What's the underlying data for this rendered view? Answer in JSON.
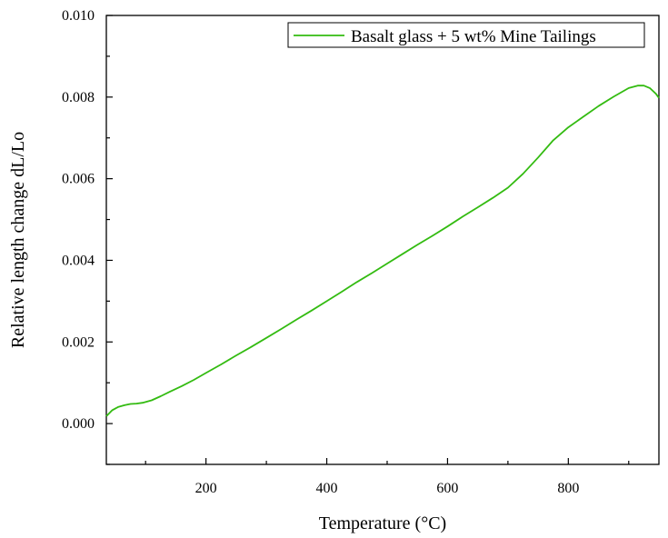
{
  "chart_data": {
    "type": "line",
    "title": "",
    "xlabel": "Temperature (°C)",
    "ylabel": "Relative length change dL/Lo",
    "xlim": [
      35,
      950
    ],
    "ylim": [
      -0.001,
      0.01
    ],
    "x_ticks": [
      200,
      400,
      600,
      800
    ],
    "x_tick_labels": [
      "200",
      "400",
      "600",
      "800"
    ],
    "x_minor_ticks": [
      100,
      300,
      500,
      700,
      900
    ],
    "y_ticks": [
      0.0,
      0.002,
      0.004,
      0.006,
      0.008,
      0.01
    ],
    "y_tick_labels": [
      "0.000",
      "0.002",
      "0.004",
      "0.006",
      "0.008",
      "0.010"
    ],
    "y_minor_ticks": [
      -0.001,
      0.001,
      0.003,
      0.005,
      0.007,
      0.009
    ],
    "grid": false,
    "legend_position": "top-right",
    "series": [
      {
        "name": "Basalt glass + 5 wt% Mine Tailings",
        "color": "#33bb11",
        "x": [
          35,
          45,
          55,
          65,
          75,
          85,
          95,
          110,
          125,
          140,
          160,
          180,
          200,
          225,
          250,
          275,
          300,
          325,
          350,
          375,
          400,
          425,
          450,
          475,
          500,
          525,
          550,
          575,
          600,
          625,
          650,
          675,
          700,
          725,
          750,
          775,
          800,
          825,
          850,
          875,
          900,
          915,
          925,
          935,
          945,
          950
        ],
        "y": [
          0.00018,
          0.00033,
          0.00041,
          0.00045,
          0.00048,
          0.00049,
          0.00051,
          0.00057,
          0.00067,
          0.00078,
          0.00092,
          0.00107,
          0.00124,
          0.00145,
          0.00167,
          0.00188,
          0.0021,
          0.00232,
          0.00255,
          0.00277,
          0.003,
          0.00323,
          0.00347,
          0.00369,
          0.00392,
          0.00415,
          0.00438,
          0.0046,
          0.00483,
          0.00507,
          0.0053,
          0.00553,
          0.00578,
          0.00612,
          0.00652,
          0.00694,
          0.00726,
          0.00752,
          0.00778,
          0.00801,
          0.00822,
          0.00828,
          0.00828,
          0.00822,
          0.00808,
          0.00798
        ]
      }
    ]
  }
}
